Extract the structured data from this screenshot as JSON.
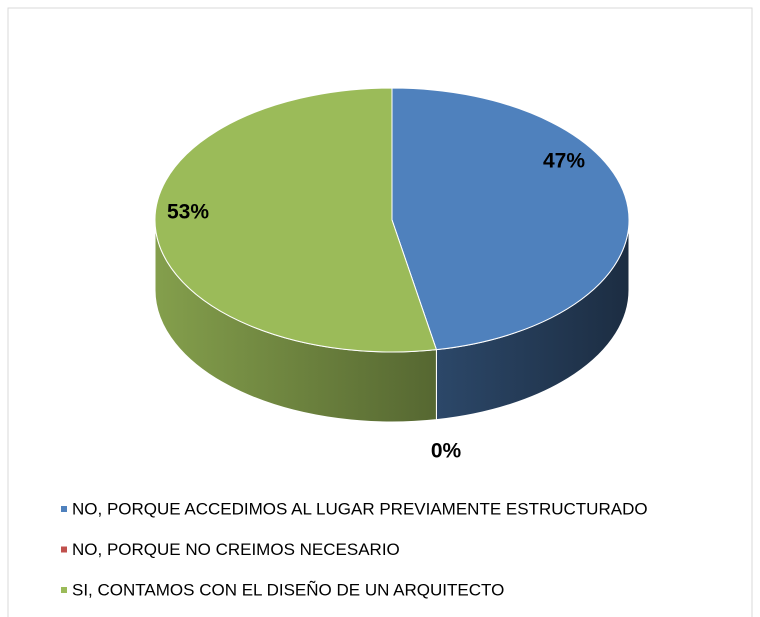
{
  "chart_data": {
    "type": "pie3d",
    "categories": [
      "NO, PORQUE ACCEDIMOS AL LUGAR PREVIAMENTE ESTRUCTURADO",
      "NO, PORQUE NO CREIMOS NECESARIO",
      "SI, CONTAMOS CON EL DISEÑO DE UN ARQUITECTO"
    ],
    "values": [
      47,
      0,
      53
    ],
    "value_labels": [
      "47%",
      "0%",
      "53%"
    ],
    "colors": [
      "#4f81bd",
      "#c0504d",
      "#9bbb59"
    ],
    "legend": "bottom"
  }
}
